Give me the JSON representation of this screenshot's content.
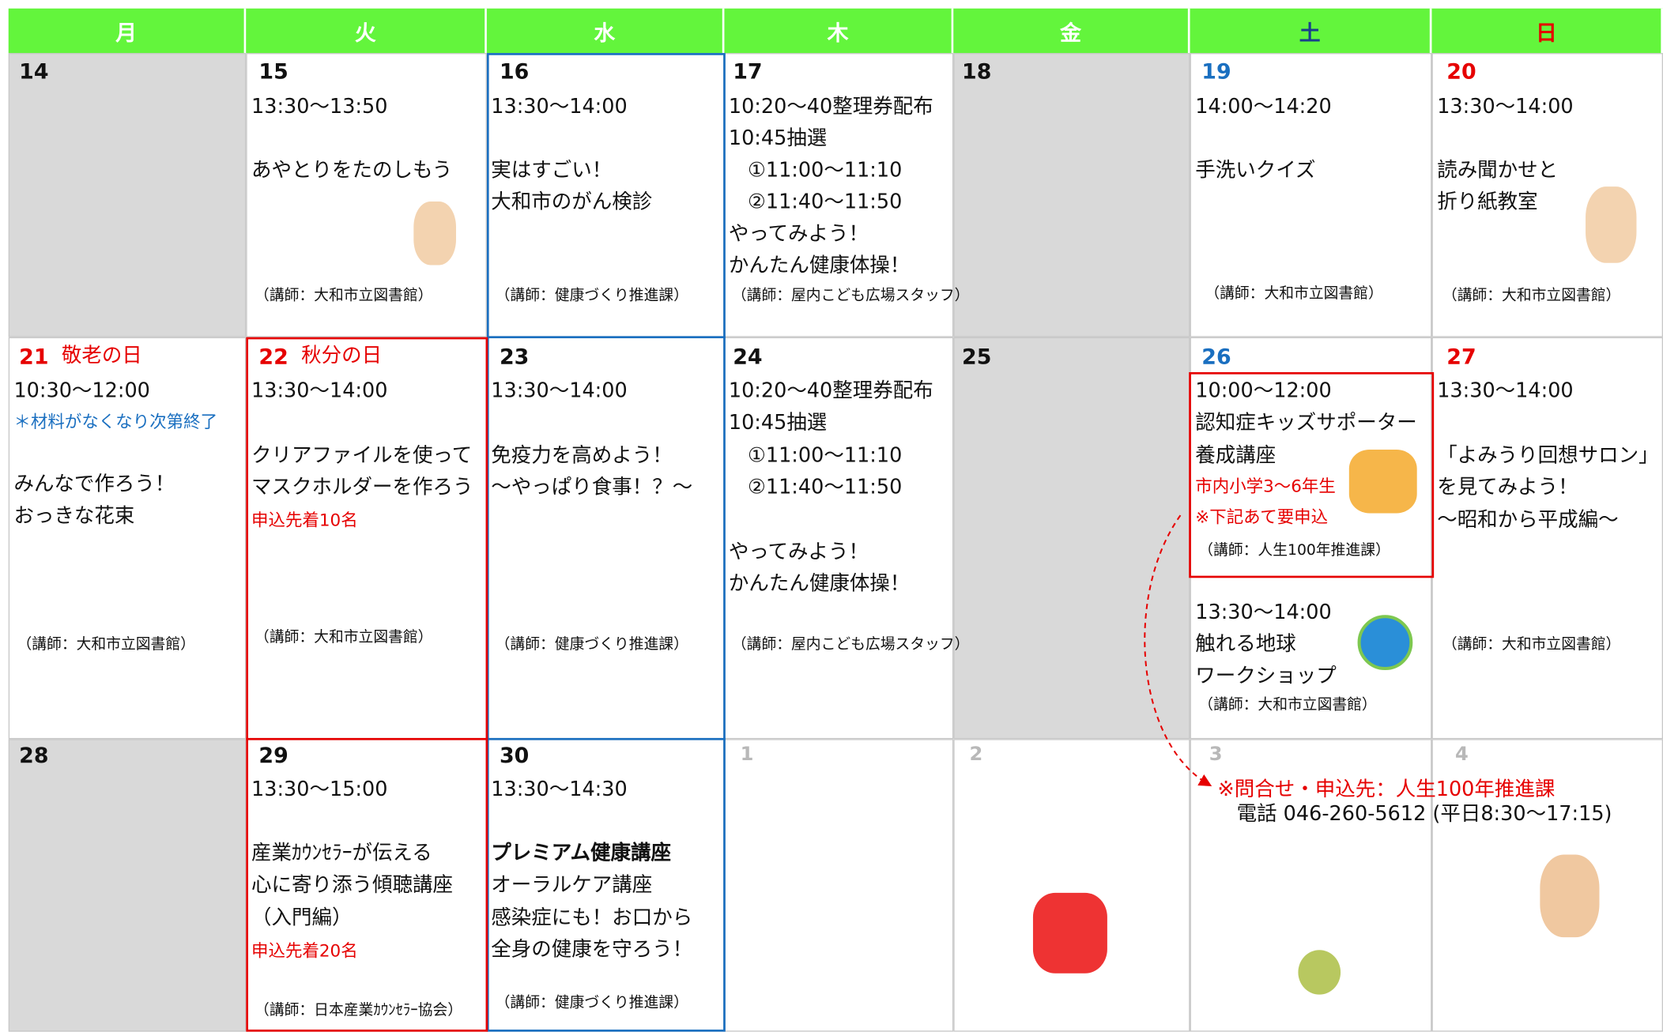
{
  "header": {
    "days": [
      "月",
      "火",
      "水",
      "木",
      "金",
      "土",
      "日"
    ]
  },
  "weeks": [
    {
      "cells": [
        {
          "date": "14"
        },
        {
          "date": "15",
          "lines": [
            "13:30～13:50",
            "あやとりをたのしもう"
          ],
          "lecturer": "（講師：大和市立図書館）"
        },
        {
          "date": "16",
          "lines": [
            "13:30～14:00",
            "実はすごい！",
            "大和市のがん検診"
          ],
          "lecturer": "（講師：健康づくり推進課）"
        },
        {
          "date": "17",
          "lines": [
            "10:20～40整理券配布",
            "10:45抽選",
            "①11:00～11:10",
            "②11:40～11:50",
            "やってみよう！",
            "かんたん健康体操！"
          ],
          "lecturer": "（講師：屋内こども広場スタッフ）"
        },
        {
          "date": "18"
        },
        {
          "date": "19",
          "lines": [
            "14:00～14:20",
            "手洗いクイズ"
          ],
          "lecturer": "（講師：大和市立図書館）"
        },
        {
          "date": "20",
          "lines": [
            "13:30～14:00",
            "読み聞かせと",
            "折り紙教室"
          ],
          "lecturer": "（講師：大和市立図書館）"
        }
      ]
    },
    {
      "cells": [
        {
          "date": "21",
          "holiday": "敬老の日",
          "lines": [
            "10:30～12:00",
            "＊材料がなくなり次第終了",
            "みんなで作ろう！",
            "おっきな花束"
          ],
          "lecturer": "（講師：大和市立図書館）"
        },
        {
          "date": "22",
          "holiday": "秋分の日",
          "lines": [
            "13:30～14:00",
            "クリアファイルを使って",
            "マスクホルダーを作ろう",
            "申込先着10名"
          ],
          "lecturer": "（講師：大和市立図書館）"
        },
        {
          "date": "23",
          "lines": [
            "13:30～14:00",
            "免疫力を高めよう！",
            "～やっぱり食事！？～"
          ],
          "lecturer": "（講師：健康づくり推進課）"
        },
        {
          "date": "24",
          "lines": [
            "10:20～40整理券配布",
            "10:45抽選",
            "①11:00～11:10",
            "②11:40～11:50",
            "やってみよう！",
            "かんたん健康体操！"
          ],
          "lecturer": "（講師：屋内こども広場スタッフ）"
        },
        {
          "date": "25"
        },
        {
          "date": "26",
          "events": [
            {
              "lines": [
                "10:00～12:00",
                "認知症キッズサポーター",
                "養成講座",
                "市内小学3～6年生",
                "※下記あて要申込"
              ],
              "lecturer": "（講師：人生100年推進課）"
            },
            {
              "lines": [
                "13:30～14:00",
                "触れる地球",
                "ワークショップ"
              ],
              "lecturer": "（講師：大和市立図書館）"
            }
          ]
        },
        {
          "date": "27",
          "lines": [
            "13:30～14:00",
            "「よみうり回想サロン」",
            "を見てみよう！",
            "～昭和から平成編～"
          ],
          "lecturer": "（講師：大和市立図書館）"
        }
      ]
    },
    {
      "cells": [
        {
          "date": "28"
        },
        {
          "date": "29",
          "lines": [
            "13:30～15:00",
            "産業ｶｳﾝｾﾗｰが伝える",
            "心に寄り添う傾聴講座",
            "（入門編）",
            "申込先着20名"
          ],
          "lecturer": "（講師：日本産業ｶｳﾝｾﾗｰ協会）"
        },
        {
          "date": "30",
          "lines": [
            "13:30～14:30",
            "プレミアム健康講座",
            "オーラルケア講座",
            "感染症にも！お口から",
            "全身の健康を守ろう！"
          ],
          "lecturer": "（講師：健康づくり推進課）"
        },
        {
          "date": "1"
        },
        {
          "date": "2"
        },
        {
          "date": "3"
        },
        {
          "date": "4"
        }
      ]
    }
  ],
  "contact": {
    "lines": [
      "※問合せ・申込先：人生100年推進課",
      "電話 046-260-5612 (平日8:30～17:15)"
    ]
  }
}
